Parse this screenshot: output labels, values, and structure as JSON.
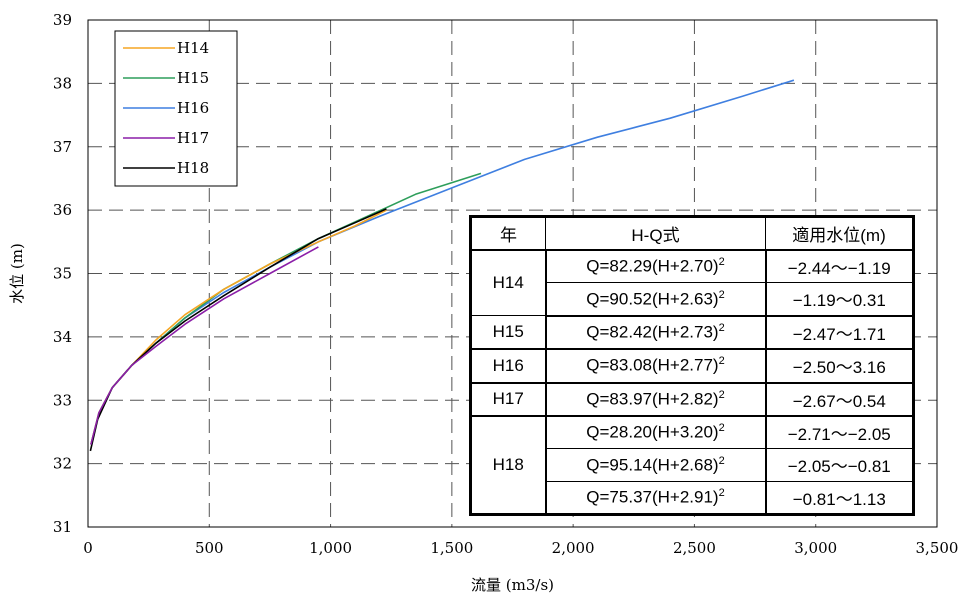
{
  "chart_data": {
    "type": "line",
    "xlabel": "流量 (m3/s)",
    "ylabel": "水位 (m)",
    "xlim": [
      0,
      3500
    ],
    "ylim": [
      31,
      39
    ],
    "x_ticks": [
      "0",
      "500",
      "1,000",
      "1,500",
      "2,000",
      "2,500",
      "3,000",
      "3,500"
    ],
    "y_ticks": [
      "31",
      "32",
      "33",
      "34",
      "35",
      "36",
      "37",
      "38",
      "39"
    ],
    "grid": "dashed",
    "legend_position": "top-left",
    "series": [
      {
        "name": "H14",
        "color": "#F5A623",
        "points": [
          [
            12,
            32.3
          ],
          [
            45,
            32.8
          ],
          [
            100,
            33.2
          ],
          [
            180,
            33.55
          ],
          [
            280,
            33.95
          ],
          [
            400,
            34.35
          ],
          [
            560,
            34.75
          ],
          [
            750,
            35.15
          ],
          [
            950,
            35.5
          ],
          [
            1100,
            35.75
          ],
          [
            1230,
            36.0
          ]
        ]
      },
      {
        "name": "H15",
        "color": "#2E9E5B",
        "points": [
          [
            12,
            32.3
          ],
          [
            45,
            32.8
          ],
          [
            100,
            33.2
          ],
          [
            180,
            33.55
          ],
          [
            280,
            33.9
          ],
          [
            400,
            34.3
          ],
          [
            560,
            34.75
          ],
          [
            750,
            35.15
          ],
          [
            950,
            35.55
          ],
          [
            1150,
            35.9
          ],
          [
            1350,
            36.25
          ],
          [
            1620,
            36.58
          ]
        ]
      },
      {
        "name": "H16",
        "color": "#3F7FE0",
        "points": [
          [
            12,
            32.3
          ],
          [
            45,
            32.8
          ],
          [
            100,
            33.2
          ],
          [
            180,
            33.55
          ],
          [
            280,
            33.9
          ],
          [
            400,
            34.3
          ],
          [
            560,
            34.7
          ],
          [
            750,
            35.1
          ],
          [
            950,
            35.5
          ],
          [
            1200,
            35.9
          ],
          [
            1500,
            36.35
          ],
          [
            1800,
            36.8
          ],
          [
            2100,
            37.15
          ],
          [
            2400,
            37.45
          ],
          [
            2700,
            37.8
          ],
          [
            2910,
            38.05
          ]
        ]
      },
      {
        "name": "H17",
        "color": "#8B1FA8",
        "points": [
          [
            12,
            32.3
          ],
          [
            45,
            32.8
          ],
          [
            100,
            33.2
          ],
          [
            180,
            33.55
          ],
          [
            280,
            33.85
          ],
          [
            400,
            34.2
          ],
          [
            560,
            34.6
          ],
          [
            750,
            35.0
          ],
          [
            950,
            35.42
          ]
        ]
      },
      {
        "name": "H18",
        "color": "#000000",
        "points": [
          [
            10,
            32.2
          ],
          [
            40,
            32.7
          ],
          [
            100,
            33.2
          ],
          [
            180,
            33.55
          ],
          [
            280,
            33.9
          ],
          [
            400,
            34.25
          ],
          [
            560,
            34.65
          ],
          [
            750,
            35.1
          ],
          [
            950,
            35.55
          ],
          [
            1100,
            35.8
          ],
          [
            1230,
            36.02
          ]
        ]
      }
    ]
  },
  "table": {
    "headers": [
      "年",
      "H-Q式",
      "適用水位(m)"
    ],
    "rows": [
      {
        "year": "H14",
        "formula": "Q=82.29(H+2.70)",
        "exp": "2",
        "range": "−2.44〜−1.19"
      },
      {
        "year": "",
        "formula": "Q=90.52(H+2.63)",
        "exp": "2",
        "range": "−1.19〜0.31"
      },
      {
        "year": "H15",
        "formula": "Q=82.42(H+2.73)",
        "exp": "2",
        "range": "−2.47〜1.71"
      },
      {
        "year": "H16",
        "formula": "Q=83.08(H+2.77)",
        "exp": "2",
        "range": "−2.50〜3.16"
      },
      {
        "year": "H17",
        "formula": "Q=83.97(H+2.82)",
        "exp": "2",
        "range": "−2.67〜0.54"
      },
      {
        "year": "H18",
        "formula": "Q=28.20(H+3.20)",
        "exp": "2",
        "range": "−2.71〜−2.05"
      },
      {
        "year": "",
        "formula": "Q=95.14(H+2.68)",
        "exp": "2",
        "range": "−2.05〜−0.81"
      },
      {
        "year": "",
        "formula": "Q=75.37(H+2.91)",
        "exp": "2",
        "range": "−0.81〜1.13"
      }
    ]
  }
}
